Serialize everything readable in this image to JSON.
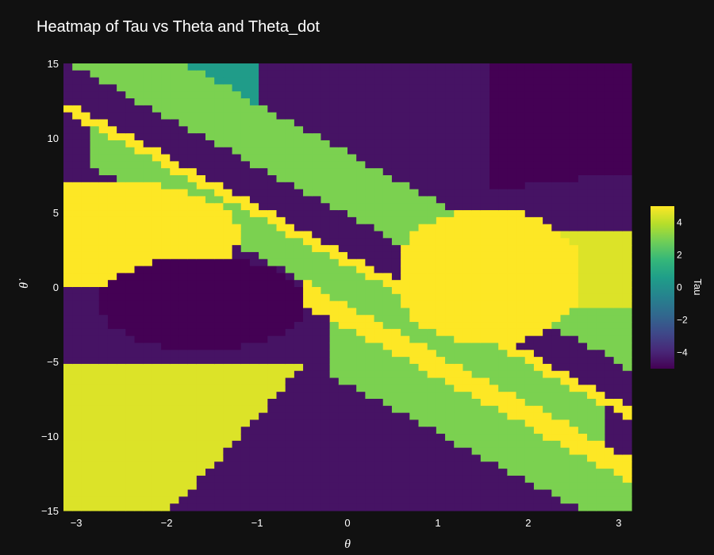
{
  "chart_data": {
    "type": "heatmap",
    "title": "Heatmap of Tau vs Theta and Theta_dot",
    "xlabel": "θ",
    "ylabel": "θ̇",
    "xlim": [
      -3.1416,
      3.1416
    ],
    "ylim": [
      -15,
      15
    ],
    "x_ticks": [
      -3,
      -2,
      -1,
      0,
      1,
      2,
      3
    ],
    "x_tick_labels": [
      "−3",
      "−2",
      "−1",
      "0",
      "1",
      "2",
      "3"
    ],
    "y_ticks": [
      15,
      10,
      5,
      0,
      -5,
      -10,
      -15
    ],
    "y_tick_labels": [
      "15",
      "10",
      "5",
      "0",
      "−5",
      "−10",
      "−15"
    ],
    "grid_size": [
      64,
      64
    ],
    "colorscale": "Viridis",
    "zlim": [
      -5,
      5
    ],
    "colorbar": {
      "title": "Tau",
      "ticks": [
        4,
        2,
        0,
        -2,
        -4
      ],
      "tick_labels": [
        "4",
        "2",
        "0",
        "−2",
        "−4"
      ]
    },
    "levels": [
      -5,
      -4.5,
      -2,
      0.5,
      3,
      4.5,
      5
    ],
    "regions": [
      {
        "value": -4.5,
        "desc": "top band region",
        "x": [
          -2.2,
          1.55
        ],
        "y": [
          15,
          6.5
        ]
      },
      {
        "value": -5,
        "desc": "upper right dark region",
        "x": [
          1.55,
          3.14
        ],
        "y": [
          15,
          8
        ]
      },
      {
        "value": 5,
        "desc": "right lens region",
        "x": [
          0.55,
          2.55
        ],
        "y": [
          5.2,
          -3.8
        ]
      },
      {
        "value": 4.5,
        "desc": "right light wedge",
        "x": [
          2.4,
          3.14
        ],
        "y": [
          3.5,
          -1.5
        ]
      },
      {
        "value": 4.5,
        "desc": "lower left light region",
        "x": [
          -3.14,
          -0.45
        ],
        "y": [
          -5,
          -15
        ]
      },
      {
        "value": -4.5,
        "desc": "bottom center region",
        "x": [
          -0.8,
          2.6
        ],
        "y": [
          -4,
          -15
        ]
      },
      {
        "value": -5,
        "desc": "left middle dark region",
        "x": [
          -2.6,
          -0.6
        ],
        "y": [
          2,
          -4
        ]
      },
      {
        "value": 5,
        "desc": "left yellow lens",
        "x": [
          -3.14,
          -1.5
        ],
        "y": [
          7,
          0.5
        ]
      },
      {
        "value": 3,
        "desc": "diagonal green bands",
        "x": [
          -3.14,
          3.14
        ],
        "y": [
          15,
          -15
        ]
      }
    ]
  }
}
